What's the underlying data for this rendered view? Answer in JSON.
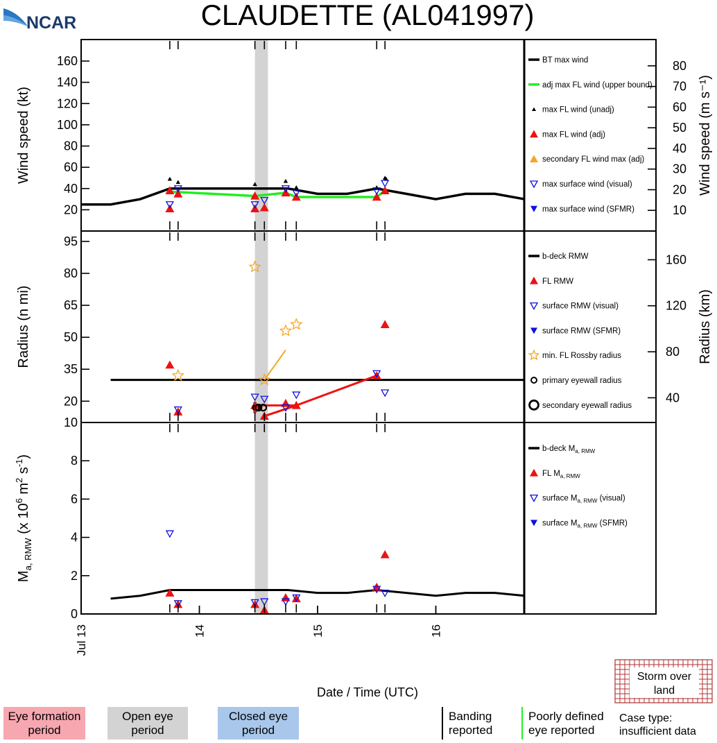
{
  "logo": {
    "text": "NCAR"
  },
  "title": "CLAUDETTE (AL041997)",
  "xaxis": {
    "title": "Date / Time (UTC)",
    "range": [
      13.0,
      16.75
    ],
    "ticks": [
      {
        "value": 13,
        "label": "Jul 13"
      },
      {
        "value": 14,
        "label": "14"
      },
      {
        "value": 15,
        "label": "15"
      },
      {
        "value": 16,
        "label": "16"
      }
    ]
  },
  "gray_band": [
    14.47,
    14.58
  ],
  "rug_ticks": [
    13.75,
    13.82,
    14.47,
    14.55,
    14.73,
    14.82,
    15.5,
    15.57
  ],
  "chart_data": [
    {
      "type": "line",
      "panel": "wind",
      "ylabel": "Wind speed (kt)",
      "ylabel_right": "Wind speed (m s⁻¹)",
      "ylim": [
        0,
        175
      ],
      "yticks": [
        20,
        40,
        60,
        80,
        100,
        120,
        140,
        160
      ],
      "right_ylim_ms": [
        0,
        90
      ],
      "right_yticks": [
        10,
        20,
        30,
        40,
        50,
        60,
        70,
        80
      ],
      "legend": [
        "BT max wind",
        "adj max FL wind (upper bound)",
        "max FL wind (unadj)",
        "max FL wind (adj)",
        "secondary FL wind max (adj)",
        "max surface wind (visual)",
        "max surface wind (SFMR)"
      ],
      "series": [
        {
          "name": "BT max wind",
          "x": [
            13.0,
            13.25,
            13.5,
            13.75,
            14.0,
            14.25,
            14.5,
            14.75,
            15.0,
            15.25,
            15.5,
            15.75,
            16.0,
            16.25,
            16.5,
            16.75
          ],
          "values": [
            25,
            25,
            30,
            40,
            40,
            40,
            40,
            40,
            35,
            35,
            40,
            35,
            30,
            35,
            35,
            30
          ]
        },
        {
          "name": "adj max FL wind (upper bound)",
          "x": [
            13.75,
            14.47,
            14.73,
            14.82,
            15.5,
            15.57
          ],
          "values": [
            37,
            33,
            36,
            32,
            32,
            38
          ]
        },
        {
          "name": "max FL wind (unadj)",
          "x": [
            13.75,
            13.82,
            14.47,
            14.73,
            14.82,
            15.5,
            15.57,
            15.58
          ],
          "values": [
            49,
            46,
            44,
            47,
            41,
            41,
            50,
            49
          ]
        },
        {
          "name": "max FL wind (adj)",
          "x": [
            13.75,
            13.75,
            13.82,
            14.47,
            14.47,
            14.55,
            14.73,
            14.82,
            15.5,
            15.57
          ],
          "values": [
            38,
            21,
            35,
            21,
            33,
            22,
            36,
            32,
            32,
            38
          ]
        },
        {
          "name": "max surface wind (visual)",
          "x": [
            13.75,
            13.82,
            14.47,
            14.55,
            14.73,
            14.82,
            15.5,
            15.57
          ],
          "values": [
            25,
            40,
            25,
            29,
            40,
            36,
            38,
            45
          ]
        }
      ]
    },
    {
      "type": "line",
      "panel": "radius",
      "ylabel": "Radius (n mi)",
      "ylabel_right": "Radius (km)",
      "ylim": [
        10,
        95
      ],
      "yticks": [
        10,
        20,
        35,
        50,
        65,
        80,
        95
      ],
      "right_yticks": [
        40,
        80,
        120,
        160
      ],
      "legend": [
        "b-deck RMW",
        "FL RMW",
        "surface RMW (visual)",
        "surface RMW (SFMR)",
        "min. FL Rossby radius",
        "primary eyewall radius",
        "secondary eyewall radius"
      ],
      "series": [
        {
          "name": "b-deck RMW",
          "x": [
            13.25,
            16.75
          ],
          "values": [
            30,
            30
          ]
        },
        {
          "name": "FL RMW",
          "x": [
            13.75,
            13.82,
            14.47,
            14.55,
            14.73,
            14.82,
            15.5,
            15.57
          ],
          "values": [
            37,
            15,
            18,
            13,
            19,
            18,
            32,
            56
          ]
        },
        {
          "name": "surface RMW (visual)",
          "x": [
            13.82,
            14.47,
            14.55,
            14.73,
            14.82,
            15.5,
            15.57
          ],
          "values": [
            16,
            22,
            21,
            17,
            23,
            33,
            24
          ]
        },
        {
          "name": "min. FL Rossby radius",
          "x": [
            13.82,
            14.47,
            14.55,
            14.73,
            14.82
          ],
          "values": [
            32,
            83,
            30,
            53,
            56
          ]
        }
      ],
      "fl_rmw_line": {
        "x": [
          14.47,
          14.73,
          14.82,
          15.5
        ],
        "values": [
          18,
          18,
          18,
          32
        ],
        "seg": {
          "x": [
            14.55,
            14.82
          ],
          "values": [
            13,
            18
          ]
        }
      },
      "rossby_line": {
        "x": [
          14.55,
          14.73
        ],
        "values": [
          30,
          44
        ]
      },
      "primary_eyewall": {
        "x": [
          14.48,
          14.54,
          14.5
        ],
        "values": [
          17,
          17,
          17
        ]
      }
    },
    {
      "type": "line",
      "panel": "ma",
      "ylabel": "Ma, RMW (x 10⁶ m² s⁻¹)",
      "ylim": [
        0,
        10
      ],
      "yticks": [
        0,
        2,
        4,
        6,
        8,
        10
      ],
      "legend": [
        "b-deck Ma, RMW",
        "FL Ma, RMW",
        "surface Ma, RMW (visual)",
        "surface Ma, RMW (SFMR)"
      ],
      "series": [
        {
          "name": "b-deck Ma, RMW",
          "x": [
            13.25,
            13.5,
            13.75,
            14.0,
            14.25,
            14.5,
            14.75,
            15.0,
            15.25,
            15.5,
            15.75,
            16.0,
            16.25,
            16.5,
            16.75
          ],
          "values": [
            0.8,
            0.95,
            1.25,
            1.25,
            1.25,
            1.25,
            1.25,
            1.1,
            1.1,
            1.25,
            1.1,
            0.95,
            1.1,
            1.1,
            0.95
          ]
        },
        {
          "name": "FL Ma, RMW",
          "x": [
            13.75,
            13.82,
            14.47,
            14.55,
            14.73,
            14.82,
            15.5,
            15.57
          ],
          "values": [
            1.1,
            0.5,
            0.5,
            0.2,
            0.85,
            0.8,
            1.4,
            3.1
          ]
        },
        {
          "name": "surface Ma, RMW (visual)",
          "x": [
            13.75,
            13.82,
            14.47,
            14.55,
            14.73,
            14.82,
            15.5,
            15.57
          ],
          "values": [
            4.2,
            0.55,
            0.6,
            0.65,
            0.65,
            0.85,
            1.3,
            1.1
          ]
        }
      ]
    }
  ],
  "legend_boxes": {
    "eye_formation": "Eye formation period",
    "open_eye": "Open eye period",
    "closed_eye": "Closed eye period",
    "banding": "Banding reported",
    "poorly_defined": "Poorly defined eye reported",
    "storm_over_land": "Storm over land",
    "case_type": "Case type: insufficient data"
  },
  "colors": {
    "red": "#ee1111",
    "orange": "#f5a623",
    "blue": "#1010dd",
    "green": "#22ee22",
    "gray": "#d3d3d3",
    "pink": "#f6a7b0",
    "lightblue": "#a9c7ea",
    "land": "#b03030"
  }
}
